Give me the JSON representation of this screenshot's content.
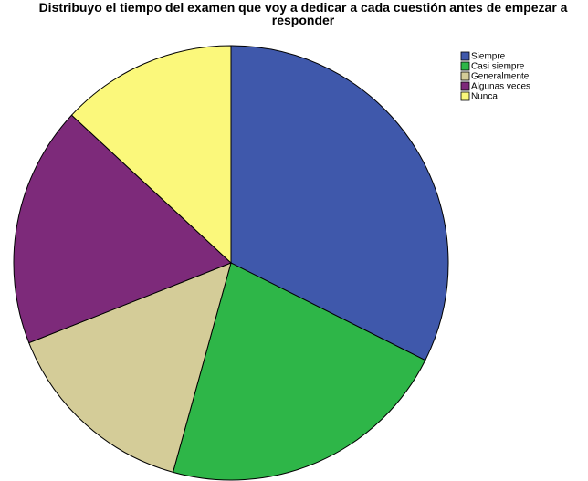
{
  "chart_data": {
    "type": "pie",
    "title": "Distribuyo el tiempo del examen que voy a dedicar a cada cuestión antes de empezar a responder",
    "categories": [
      "Siempre",
      "Casi siempre",
      "Generalmente",
      "Algunas veces",
      "Nunca"
    ],
    "values": [
      32.4,
      21.9,
      14.7,
      17.9,
      13.1
    ],
    "colors": [
      "#3f58ab",
      "#2eb648",
      "#d4cc98",
      "#7d2a7a",
      "#fbf87b"
    ],
    "legend": "top-right"
  }
}
